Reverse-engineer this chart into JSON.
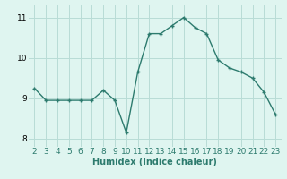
{
  "x": [
    2,
    3,
    4,
    5,
    6,
    7,
    8,
    9,
    10,
    11,
    12,
    13,
    14,
    15,
    16,
    17,
    18,
    19,
    20,
    21,
    22,
    23
  ],
  "y": [
    9.25,
    8.95,
    8.95,
    8.95,
    8.95,
    8.95,
    9.2,
    8.95,
    8.15,
    9.65,
    10.6,
    10.6,
    10.8,
    11.0,
    10.75,
    10.6,
    9.95,
    9.75,
    9.65,
    9.5,
    9.15,
    8.6
  ],
  "line_color": "#2d7b6e",
  "marker": "+",
  "marker_size": 3,
  "linewidth": 1.0,
  "bg_color": "#dff5f0",
  "grid_color": "#b8dcd6",
  "xlabel": "Humidex (Indice chaleur)",
  "xlabel_fontsize": 7,
  "tick_fontsize": 6.5,
  "ylim": [
    7.8,
    11.3
  ],
  "yticks": [
    8,
    9,
    10,
    11
  ],
  "xticks": [
    2,
    3,
    4,
    5,
    6,
    7,
    8,
    9,
    10,
    11,
    12,
    13,
    14,
    15,
    16,
    17,
    18,
    19,
    20,
    21,
    22,
    23
  ],
  "xlim": [
    1.5,
    23.5
  ]
}
